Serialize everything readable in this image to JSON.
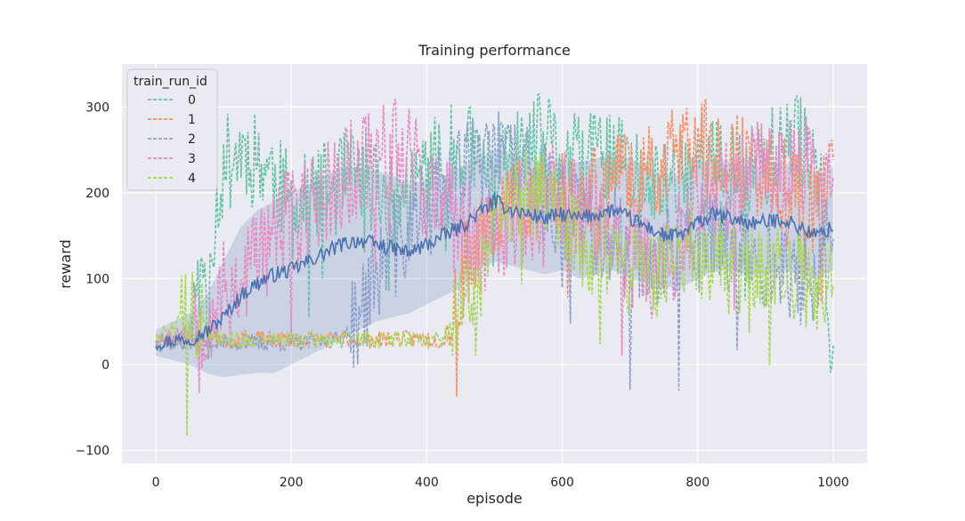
{
  "chart_data": {
    "type": "line",
    "title": "Training performance",
    "xlabel": "episode",
    "ylabel": "reward",
    "xlim": [
      -50,
      1050
    ],
    "ylim": [
      -115,
      350
    ],
    "xticks": [
      0,
      200,
      400,
      600,
      800,
      1000
    ],
    "yticks": [
      -100,
      0,
      100,
      200,
      300
    ],
    "grid": true,
    "legend": {
      "title": "train_run_id",
      "placement": "top-left"
    },
    "mean_line": {
      "color": "#4c72b0",
      "x": [
        0,
        25,
        50,
        75,
        100,
        125,
        150,
        175,
        200,
        225,
        250,
        275,
        300,
        325,
        350,
        375,
        400,
        425,
        450,
        475,
        500,
        525,
        550,
        575,
        600,
        625,
        650,
        675,
        700,
        725,
        750,
        775,
        800,
        825,
        850,
        875,
        900,
        925,
        950,
        975,
        1000
      ],
      "y": [
        25,
        28,
        30,
        38,
        55,
        80,
        95,
        105,
        110,
        120,
        130,
        140,
        145,
        140,
        135,
        130,
        140,
        150,
        160,
        175,
        190,
        180,
        175,
        170,
        175,
        170,
        175,
        180,
        170,
        160,
        150,
        150,
        165,
        175,
        170,
        165,
        165,
        170,
        160,
        150,
        160
      ],
      "ci_low": [
        10,
        5,
        0,
        -10,
        -15,
        -12,
        -10,
        -10,
        0,
        10,
        20,
        30,
        40,
        50,
        55,
        60,
        70,
        80,
        90,
        110,
        120,
        115,
        110,
        105,
        110,
        100,
        105,
        110,
        100,
        95,
        90,
        90,
        100,
        110,
        110,
        105,
        105,
        110,
        105,
        100,
        110
      ],
      "ci_high": [
        40,
        50,
        60,
        80,
        120,
        160,
        180,
        190,
        200,
        210,
        220,
        230,
        230,
        225,
        220,
        210,
        215,
        220,
        230,
        240,
        250,
        245,
        240,
        235,
        240,
        235,
        240,
        245,
        240,
        230,
        220,
        220,
        235,
        240,
        235,
        230,
        230,
        235,
        230,
        220,
        230
      ]
    },
    "series": [
      {
        "name": "0",
        "color": "#66c2a5",
        "x": [
          0,
          25,
          50,
          75,
          100,
          125,
          150,
          175,
          200,
          225,
          250,
          275,
          300,
          325,
          350,
          375,
          400,
          425,
          450,
          475,
          500,
          525,
          550,
          575,
          600,
          625,
          650,
          675,
          700,
          725,
          750,
          775,
          800,
          825,
          850,
          875,
          900,
          925,
          950,
          975,
          1000
        ],
        "y": [
          25,
          30,
          40,
          120,
          230,
          250,
          240,
          220,
          180,
          190,
          200,
          210,
          220,
          210,
          180,
          200,
          230,
          240,
          250,
          240,
          220,
          230,
          250,
          260,
          240,
          230,
          240,
          250,
          220,
          200,
          210,
          230,
          240,
          230,
          220,
          230,
          240,
          250,
          260,
          250,
          30
        ],
        "amp": 60,
        "seed": 11
      },
      {
        "name": "1",
        "color": "#fc8d62",
        "x": [
          0,
          25,
          50,
          75,
          100,
          125,
          150,
          175,
          200,
          225,
          250,
          275,
          300,
          325,
          350,
          375,
          400,
          425,
          450,
          475,
          500,
          525,
          550,
          575,
          600,
          625,
          650,
          675,
          700,
          725,
          750,
          775,
          800,
          825,
          850,
          875,
          900,
          925,
          950,
          975,
          1000
        ],
        "y": [
          25,
          28,
          30,
          30,
          28,
          30,
          30,
          28,
          30,
          30,
          28,
          30,
          30,
          28,
          30,
          30,
          30,
          28,
          100,
          150,
          180,
          190,
          200,
          210,
          200,
          190,
          200,
          210,
          220,
          230,
          240,
          250,
          260,
          250,
          240,
          230,
          220,
          210,
          200,
          190,
          230
        ],
        "amp": 55,
        "seed": 23
      },
      {
        "name": "2",
        "color": "#8da0cb",
        "x": [
          0,
          25,
          50,
          75,
          100,
          125,
          150,
          175,
          200,
          225,
          250,
          275,
          300,
          325,
          350,
          375,
          400,
          425,
          450,
          475,
          500,
          525,
          550,
          575,
          600,
          625,
          650,
          675,
          700,
          725,
          750,
          775,
          800,
          825,
          850,
          875,
          900,
          925,
          950,
          975,
          1000
        ],
        "y": [
          25,
          25,
          25,
          25,
          25,
          25,
          25,
          25,
          25,
          25,
          28,
          30,
          60,
          100,
          130,
          160,
          180,
          200,
          220,
          230,
          240,
          230,
          220,
          200,
          180,
          170,
          160,
          150,
          140,
          130,
          120,
          130,
          140,
          150,
          140,
          130,
          120,
          110,
          100,
          110,
          150
        ],
        "amp": 60,
        "seed": 37
      },
      {
        "name": "3",
        "color": "#e78ac3",
        "x": [
          0,
          25,
          50,
          75,
          100,
          125,
          150,
          175,
          200,
          225,
          250,
          275,
          300,
          325,
          350,
          375,
          400,
          425,
          450,
          475,
          500,
          525,
          550,
          575,
          600,
          625,
          650,
          675,
          700,
          725,
          750,
          775,
          800,
          825,
          850,
          875,
          900,
          925,
          950,
          975,
          1000
        ],
        "y": [
          30,
          35,
          40,
          60,
          80,
          100,
          130,
          150,
          170,
          180,
          200,
          220,
          230,
          240,
          250,
          260,
          200,
          180,
          160,
          150,
          140,
          160,
          180,
          190,
          200,
          180,
          160,
          150,
          130,
          120,
          110,
          150,
          180,
          200,
          210,
          220,
          230,
          240,
          230,
          220,
          200
        ],
        "amp": 65,
        "seed": 53
      },
      {
        "name": "4",
        "color": "#a6d854",
        "x": [
          0,
          25,
          50,
          75,
          100,
          125,
          150,
          175,
          200,
          225,
          250,
          275,
          300,
          325,
          350,
          375,
          400,
          425,
          450,
          475,
          500,
          525,
          550,
          575,
          600,
          625,
          650,
          675,
          700,
          725,
          750,
          775,
          800,
          825,
          850,
          875,
          900,
          925,
          950,
          975,
          1000
        ],
        "y": [
          30,
          40,
          60,
          40,
          30,
          28,
          30,
          28,
          30,
          28,
          30,
          28,
          30,
          28,
          30,
          30,
          28,
          30,
          60,
          100,
          150,
          180,
          200,
          190,
          170,
          150,
          130,
          120,
          110,
          100,
          120,
          140,
          130,
          120,
          110,
          100,
          110,
          120,
          100,
          90,
          100
        ],
        "amp": 55,
        "seed": 71
      }
    ]
  }
}
